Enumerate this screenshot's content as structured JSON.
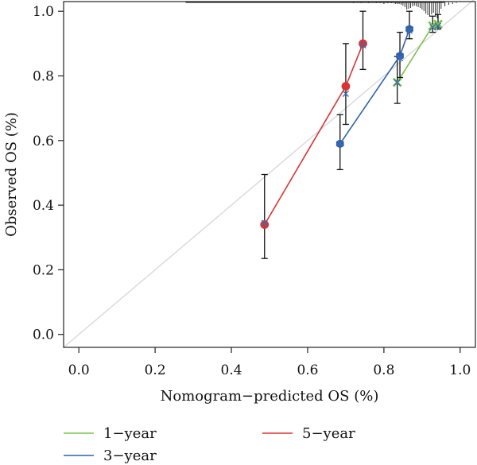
{
  "chart_data": {
    "type": "line",
    "title": "",
    "xlabel": "Nomogram−predicted OS (%)",
    "ylabel": "Observed OS (%)",
    "xlim": [
      -0.04,
      1.04
    ],
    "ylim": [
      -0.04,
      1.03
    ],
    "x_ticks": [
      "0.0",
      "0.2",
      "0.4",
      "0.6",
      "0.8",
      "1.0"
    ],
    "y_ticks": [
      "0.0",
      "0.2",
      "0.4",
      "0.6",
      "0.8",
      "1.0"
    ],
    "grid": false,
    "legend_position": "bottom",
    "reference_line": {
      "from": [
        0,
        0
      ],
      "to": [
        1,
        1
      ],
      "color": "#dddddd"
    },
    "series": [
      {
        "name": "1−year",
        "color": "#7cc04a",
        "points": [
          {
            "x": 0.835,
            "y": 0.78,
            "corrected": 0.78,
            "lo": 0.715,
            "hi": 0.86
          },
          {
            "x": 0.928,
            "y": 0.955,
            "corrected": 0.95,
            "lo": 0.935,
            "hi": 0.985
          },
          {
            "x": 0.942,
            "y": 0.96,
            "corrected": 0.955,
            "lo": 0.945,
            "hi": 0.99
          }
        ]
      },
      {
        "name": "3−year",
        "color": "#2f62a8",
        "points": [
          {
            "x": 0.685,
            "y": 0.59,
            "corrected": 0.59,
            "lo": 0.51,
            "hi": 0.68
          },
          {
            "x": 0.842,
            "y": 0.862,
            "corrected": 0.855,
            "lo": 0.795,
            "hi": 0.935
          },
          {
            "x": 0.867,
            "y": 0.945,
            "corrected": 0.94,
            "lo": 0.915,
            "hi": 1.0
          }
        ]
      },
      {
        "name": "5−year",
        "color": "#d93433",
        "points": [
          {
            "x": 0.487,
            "y": 0.34,
            "corrected": 0.345,
            "lo": 0.235,
            "hi": 0.495
          },
          {
            "x": 0.7,
            "y": 0.768,
            "corrected": 0.745,
            "lo": 0.65,
            "hi": 0.9
          },
          {
            "x": 0.745,
            "y": 0.9,
            "corrected": 0.895,
            "lo": 0.82,
            "hi": 1.0
          }
        ]
      }
    ],
    "rug": [
      0.72,
      0.74,
      0.76,
      0.78,
      0.79,
      0.8,
      0.81,
      0.82,
      0.83,
      0.835,
      0.84,
      0.845,
      0.85,
      0.855,
      0.86,
      0.865,
      0.87,
      0.875,
      0.88,
      0.885,
      0.89,
      0.895,
      0.9,
      0.905,
      0.91,
      0.915,
      0.92,
      0.925,
      0.93,
      0.935,
      0.94,
      0.945,
      0.95,
      0.96,
      0.97,
      0.98,
      0.99
    ],
    "rug_heights": [
      1,
      1,
      1,
      1,
      1,
      2,
      1,
      1,
      2,
      2,
      2,
      3,
      4,
      6,
      9,
      8,
      7,
      5,
      4,
      5,
      6,
      7,
      9,
      11,
      14,
      16,
      18,
      15,
      13,
      17,
      20,
      14,
      8,
      5,
      3,
      2,
      1
    ]
  }
}
